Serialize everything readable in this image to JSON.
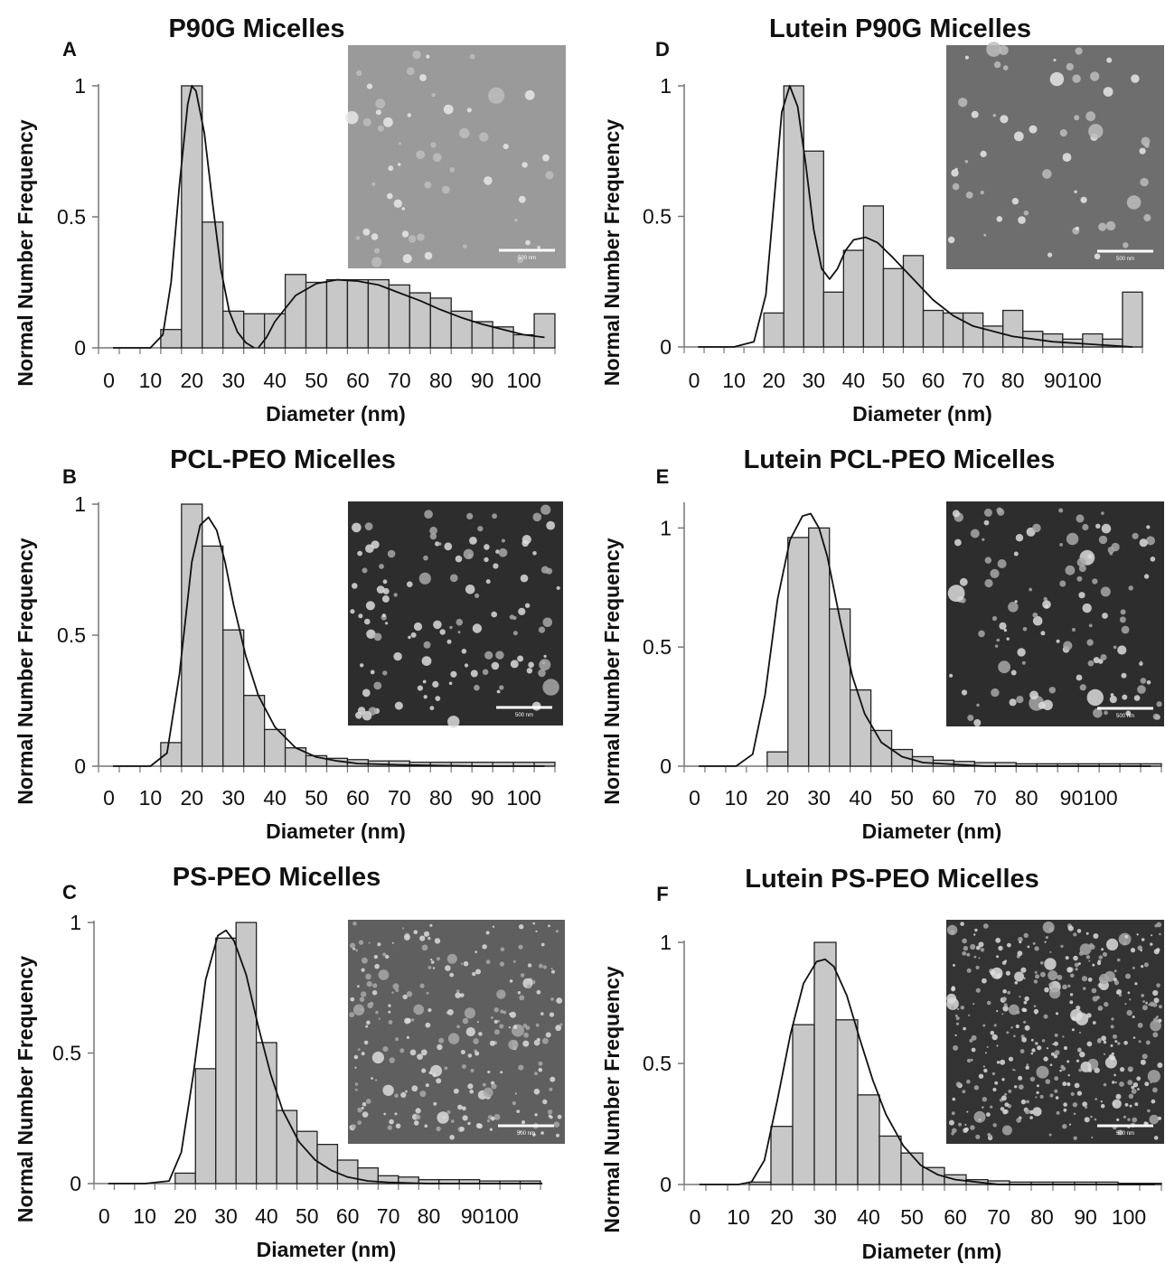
{
  "chart_data": [
    {
      "type": "bar",
      "letter": "A",
      "title": "P90G Micelles",
      "xlabel": "Diameter (nm)",
      "ylabel": "Normal Number Frequency",
      "x_tick_labels": [
        "0",
        "10",
        "20",
        "30",
        "40",
        "50",
        "60",
        "70",
        "80",
        "90",
        "100"
      ],
      "y_tick_labels": [
        "0",
        "0.5",
        "1"
      ],
      "ylim": [
        0,
        1
      ],
      "bin_width_nm": 5,
      "bin_centers_nm": [
        15,
        20,
        25,
        30,
        35,
        40,
        45,
        50,
        55,
        60,
        65,
        70,
        75,
        80,
        85,
        90,
        95,
        100,
        105
      ],
      "values": [
        0.07,
        1.0,
        0.48,
        0.14,
        0.13,
        0.13,
        0.28,
        0.25,
        0.26,
        0.26,
        0.26,
        0.24,
        0.21,
        0.19,
        0.14,
        0.1,
        0.08,
        0.05,
        0.13
      ],
      "fit": [
        {
          "x": [
            1,
            5,
            10,
            13,
            15,
            17,
            19,
            20,
            21,
            23,
            25,
            27,
            29,
            31,
            33,
            35
          ],
          "y": [
            0,
            0,
            0,
            0.05,
            0.25,
            0.62,
            0.93,
            1.0,
            0.98,
            0.82,
            0.55,
            0.3,
            0.14,
            0.06,
            0.02,
            0
          ]
        },
        {
          "x": [
            36,
            38,
            40,
            45,
            50,
            55,
            60,
            65,
            70,
            75,
            80,
            85,
            90,
            95,
            100,
            105
          ],
          "y": [
            0,
            0.04,
            0.1,
            0.2,
            0.245,
            0.26,
            0.255,
            0.24,
            0.21,
            0.18,
            0.145,
            0.115,
            0.09,
            0.07,
            0.05,
            0.04
          ]
        }
      ],
      "inset": {
        "image": "TEM micrograph",
        "tone": "light-gray",
        "scale_label": "500 nm"
      }
    },
    {
      "type": "bar",
      "letter": "B",
      "title": "PCL-PEO Micelles",
      "xlabel": "Diameter (nm)",
      "ylabel": "Normal Number Frequency",
      "x_tick_labels": [
        "0",
        "10",
        "20",
        "30",
        "40",
        "50",
        "60",
        "70",
        "80",
        "90",
        "100"
      ],
      "y_tick_labels": [
        "0",
        "0.5",
        "1"
      ],
      "ylim": [
        0,
        1
      ],
      "bin_width_nm": 5,
      "bin_centers_nm": [
        15,
        20,
        25,
        30,
        35,
        40,
        45,
        50,
        55,
        60,
        65,
        70,
        75,
        80,
        85,
        90,
        95,
        100,
        105
      ],
      "values": [
        0.09,
        1.0,
        0.84,
        0.52,
        0.27,
        0.14,
        0.07,
        0.04,
        0.03,
        0.025,
        0.02,
        0.02,
        0.015,
        0.015,
        0.015,
        0.015,
        0.015,
        0.015,
        0.015
      ],
      "fit": [
        {
          "x": [
            1,
            5,
            10,
            14,
            17,
            20,
            22,
            24,
            26,
            28,
            30,
            33,
            36,
            40,
            45,
            50,
            55,
            60,
            70,
            80,
            90,
            100,
            105
          ],
          "y": [
            0,
            0,
            0,
            0.05,
            0.35,
            0.78,
            0.92,
            0.95,
            0.9,
            0.78,
            0.62,
            0.42,
            0.27,
            0.15,
            0.07,
            0.035,
            0.02,
            0.01,
            0.005,
            0.002,
            0,
            0,
            0
          ]
        }
      ],
      "inset": {
        "image": "TEM micrograph",
        "tone": "dark",
        "scale_label": "500 nm"
      }
    },
    {
      "type": "bar",
      "letter": "C",
      "title": "PS-PEO Micelles",
      "xlabel": "Diameter (nm)",
      "ylabel": "Normal Number Frequency",
      "x_tick_labels": [
        "0",
        "10",
        "20",
        "30",
        "40",
        "50",
        "60",
        "70",
        "80",
        "90100"
      ],
      "y_tick_labels": [
        "0",
        "0.5",
        "1"
      ],
      "ylim": [
        0,
        1
      ],
      "bin_width_nm": 5,
      "bin_centers_nm": [
        20,
        25,
        30,
        35,
        40,
        45,
        50,
        55,
        60,
        65,
        70,
        75,
        80,
        85,
        90,
        95,
        100,
        105
      ],
      "values": [
        0.04,
        0.44,
        0.94,
        1.0,
        0.54,
        0.28,
        0.2,
        0.15,
        0.09,
        0.06,
        0.03,
        0.025,
        0.015,
        0.015,
        0.015,
        0.01,
        0.01,
        0.01
      ],
      "fit": [
        {
          "x": [
            1,
            10,
            16,
            19,
            22,
            25,
            28,
            30,
            32,
            35,
            38,
            41,
            44,
            48,
            52,
            56,
            60,
            65,
            70,
            80,
            90,
            100,
            108
          ],
          "y": [
            0,
            0,
            0.01,
            0.12,
            0.42,
            0.78,
            0.95,
            0.97,
            0.93,
            0.8,
            0.6,
            0.42,
            0.28,
            0.16,
            0.09,
            0.05,
            0.025,
            0.01,
            0.005,
            0,
            0,
            0,
            0
          ]
        }
      ],
      "inset": {
        "image": "TEM micrograph",
        "tone": "medium-gray",
        "scale_label": "500 nm"
      }
    },
    {
      "type": "bar",
      "letter": "D",
      "title": "Lutein P90G Micelles",
      "xlabel": "Diameter (nm)",
      "ylabel": "Normal Number Frequency",
      "x_tick_labels": [
        "0",
        "10",
        "20",
        "30",
        "40",
        "50",
        "60",
        "70",
        "80",
        "90100"
      ],
      "y_tick_labels": [
        "0",
        "0.5",
        "1"
      ],
      "ylim": [
        0,
        1
      ],
      "bin_width_nm": 5,
      "bin_centers_nm": [
        20,
        25,
        30,
        35,
        40,
        45,
        50,
        55,
        60,
        65,
        70,
        75,
        80,
        85,
        90,
        95,
        100,
        105,
        110
      ],
      "values": [
        0.13,
        1.0,
        0.75,
        0.21,
        0.37,
        0.54,
        0.3,
        0.35,
        0.14,
        0.13,
        0.13,
        0.08,
        0.14,
        0.06,
        0.05,
        0.03,
        0.05,
        0.03,
        0.21
      ],
      "fit": [
        {
          "x": [
            1,
            10,
            15,
            18,
            20,
            22,
            24,
            26,
            28,
            30,
            32,
            34,
            36,
            38,
            40,
            43,
            46,
            50,
            55,
            60,
            65,
            70,
            80,
            90,
            100,
            110
          ],
          "y": [
            0,
            0,
            0.02,
            0.2,
            0.55,
            0.9,
            1.0,
            0.92,
            0.7,
            0.45,
            0.3,
            0.26,
            0.3,
            0.37,
            0.41,
            0.42,
            0.4,
            0.34,
            0.26,
            0.18,
            0.12,
            0.08,
            0.04,
            0.02,
            0.01,
            0
          ]
        }
      ],
      "inset": {
        "image": "TEM micrograph",
        "tone": "mid-gray",
        "scale_label": "500 nm"
      }
    },
    {
      "type": "bar",
      "letter": "E",
      "title": "Lutein PCL-PEO Micelles",
      "xlabel": "Diameter (nm)",
      "ylabel": "Normal Number Frequency",
      "x_tick_labels": [
        "0",
        "10",
        "20",
        "30",
        "40",
        "50",
        "60",
        "70",
        "80",
        "90100"
      ],
      "y_tick_labels": [
        "0",
        "0.5",
        "1"
      ],
      "ylim": [
        0,
        1.1
      ],
      "bin_width_nm": 5,
      "bin_centers_nm": [
        20,
        25,
        30,
        35,
        40,
        45,
        50,
        55,
        60,
        65,
        70,
        75,
        80,
        85,
        90,
        95,
        100,
        105,
        110
      ],
      "values": [
        0.06,
        0.96,
        1.0,
        0.66,
        0.32,
        0.15,
        0.07,
        0.04,
        0.025,
        0.02,
        0.015,
        0.015,
        0.01,
        0.01,
        0.01,
        0.01,
        0.01,
        0.01,
        0.01
      ],
      "fit": [
        {
          "x": [
            1,
            10,
            14,
            17,
            20,
            23,
            26,
            28,
            30,
            32,
            35,
            38,
            41,
            45,
            50,
            55,
            60,
            70,
            80,
            90,
            100,
            110
          ],
          "y": [
            0,
            0,
            0.05,
            0.3,
            0.7,
            0.95,
            1.05,
            1.06,
            1.0,
            0.88,
            0.62,
            0.38,
            0.22,
            0.1,
            0.04,
            0.015,
            0.01,
            0,
            0,
            0,
            0,
            0
          ]
        }
      ],
      "inset": {
        "image": "TEM micrograph",
        "tone": "dark",
        "scale_label": "500 nm"
      }
    },
    {
      "type": "bar",
      "letter": "F",
      "title": "Lutein PS-PEO Micelles",
      "xlabel": "Diameter (nm)",
      "ylabel": "Normal Number Frequency",
      "x_tick_labels": [
        "0",
        "10",
        "20",
        "30",
        "40",
        "50",
        "60",
        "70",
        "80",
        "90",
        "100"
      ],
      "y_tick_labels": [
        "0",
        "0.5",
        "1"
      ],
      "ylim": [
        0,
        1
      ],
      "bin_width_nm": 5,
      "bin_centers_nm": [
        15,
        20,
        25,
        30,
        35,
        40,
        45,
        50,
        55,
        60,
        65,
        70,
        75,
        80,
        85,
        90,
        95,
        100,
        105
      ],
      "values": [
        0.01,
        0.24,
        0.66,
        1.0,
        0.68,
        0.37,
        0.2,
        0.13,
        0.07,
        0.04,
        0.02,
        0.015,
        0.01,
        0.01,
        0.01,
        0.01,
        0.01,
        0.005,
        0.005
      ],
      "fit": [
        {
          "x": [
            1,
            10,
            13,
            16,
            19,
            22,
            25,
            28,
            30,
            32,
            35,
            38,
            41,
            44,
            48,
            52,
            56,
            60,
            65,
            70,
            80,
            90,
            100,
            106
          ],
          "y": [
            0,
            0,
            0.01,
            0.1,
            0.35,
            0.62,
            0.83,
            0.92,
            0.93,
            0.9,
            0.78,
            0.6,
            0.43,
            0.29,
            0.16,
            0.08,
            0.04,
            0.02,
            0.01,
            0,
            0,
            0,
            0,
            0
          ]
        }
      ],
      "inset": {
        "image": "TEM micrograph",
        "tone": "dark-dotted",
        "scale_label": "500 nm"
      }
    }
  ]
}
